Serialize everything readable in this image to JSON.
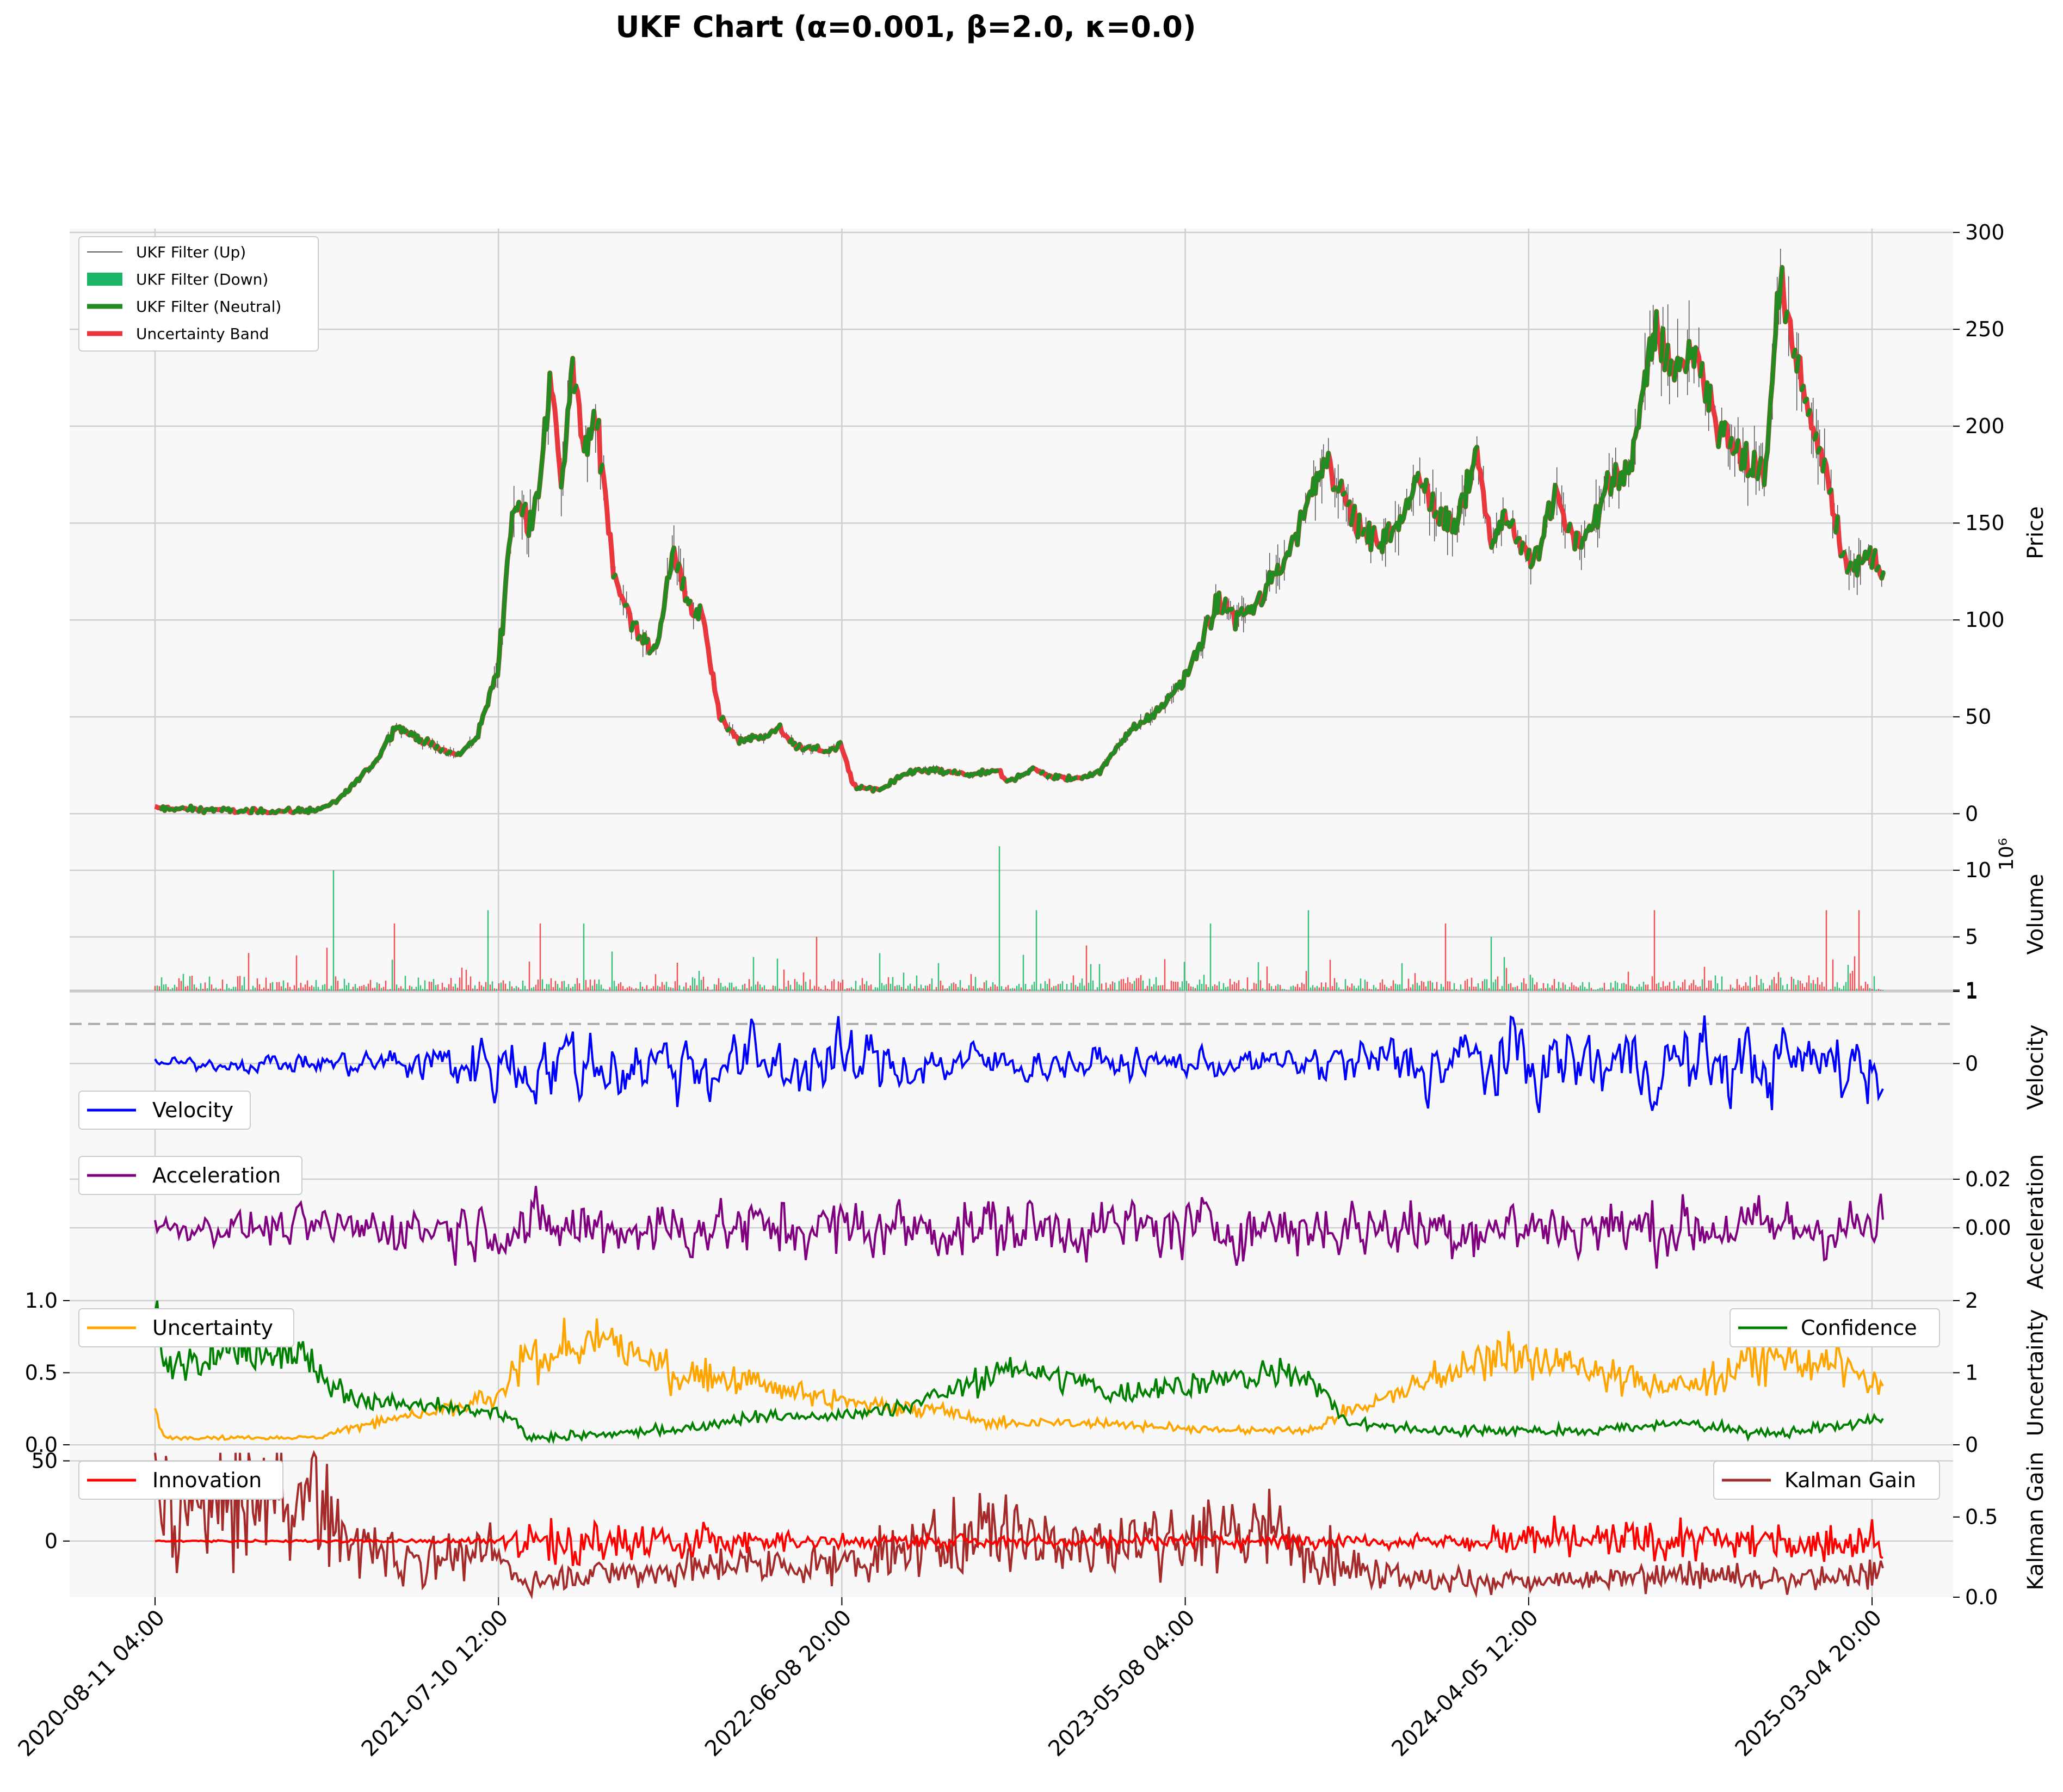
{
  "chart_data": {
    "title": "UKF Chart (α=0.001, β=2.0, κ=0.0)",
    "x_tick_labels": [
      "2020-08-11 04:00",
      "2021-07-10 12:00",
      "2022-06-08 20:00",
      "2023-05-08 04:00",
      "2024-04-05 12:00",
      "2025-03-04 20:00"
    ],
    "x_range": [
      "2020-08-11 04:00",
      "2025-03-17 00:00"
    ],
    "colors": {
      "panel_bg": "#f8f8f8",
      "grid": "#cfcfcf",
      "up_wick": "#555555",
      "down": "#19b465",
      "neutral": "#228b22",
      "band": "#e8383d",
      "velocity": "#0000ff",
      "acceleration": "#800080",
      "uncertainty": "#ffa500",
      "confidence": "#008000",
      "innovation": "#ff0000",
      "kalman_gain": "#a52a2a"
    },
    "panels": [
      {
        "id": "price",
        "type": "line",
        "ylabel": "Price",
        "ylim": [
          -12,
          302
        ],
        "yticks": [
          "0",
          "50",
          "100",
          "150",
          "200",
          "250",
          "300"
        ],
        "ytick_values": [
          0,
          50,
          100,
          150,
          200,
          250,
          300
        ],
        "legend": {
          "placement": "top-left",
          "entries": [
            "UKF Filter (Up)",
            "UKF Filter (Down)",
            "UKF Filter (Neutral)",
            "Uncertainty Band"
          ]
        },
        "series": [
          {
            "name": "Uncertainty Band",
            "x": [
              "2020-08-11",
              "2020-10-01",
              "2020-12-01",
              "2021-01-15",
              "2021-02-01",
              "2021-02-20",
              "2021-03-15",
              "2021-04-01",
              "2021-04-20",
              "2021-05-15",
              "2021-06-01",
              "2021-06-20",
              "2021-07-10",
              "2021-07-25",
              "2021-08-10",
              "2021-08-20",
              "2021-09-01",
              "2021-09-10",
              "2021-09-20",
              "2021-10-01",
              "2021-10-15",
              "2021-11-01",
              "2021-11-10",
              "2021-11-25",
              "2021-12-10",
              "2021-12-28",
              "2022-01-10",
              "2022-01-25",
              "2022-02-10",
              "2022-03-01",
              "2022-03-25",
              "2022-04-10",
              "2022-04-25",
              "2022-05-10",
              "2022-05-25",
              "2022-06-08",
              "2022-06-20",
              "2022-07-15",
              "2022-08-15",
              "2022-09-10",
              "2022-10-10",
              "2022-11-09",
              "2022-11-15",
              "2022-12-10",
              "2022-12-31",
              "2023-01-20",
              "2023-02-15",
              "2023-03-10",
              "2023-04-15",
              "2023-05-08",
              "2023-06-10",
              "2023-06-25",
              "2023-07-20",
              "2023-08-20",
              "2023-09-20",
              "2023-10-25",
              "2023-11-15",
              "2023-12-01",
              "2023-12-20",
              "2024-01-05",
              "2024-01-25",
              "2024-02-15",
              "2024-03-01",
              "2024-03-15",
              "2024-04-05",
              "2024-04-15",
              "2024-05-01",
              "2024-05-20",
              "2024-06-05",
              "2024-06-25",
              "2024-07-15",
              "2024-08-05",
              "2024-08-25",
              "2024-09-15",
              "2024-10-05",
              "2024-10-20",
              "2024-11-05",
              "2024-11-20",
              "2024-12-05",
              "2024-12-20",
              "2025-01-05",
              "2025-01-20",
              "2025-02-01",
              "2025-02-15",
              "2025-03-04",
              "2025-03-17"
            ],
            "values": [
              3,
              2,
              1,
              2,
              5,
              15,
              28,
              45,
              40,
              33,
              30,
              40,
              75,
              160,
              150,
              175,
              225,
              170,
              230,
              190,
              200,
              120,
              110,
              90,
              85,
              135,
              110,
              100,
              50,
              38,
              40,
              44,
              34,
              34,
              32,
              36,
              14,
              12,
              22,
              22,
              20,
              22,
              16,
              23,
              19,
              18,
              22,
              40,
              55,
              70,
              110,
              100,
              110,
              140,
              185,
              145,
              140,
              150,
              175,
              155,
              150,
              185,
              140,
              155,
              130,
              135,
              165,
              140,
              145,
              175,
              180,
              250,
              230,
              240,
              200,
              190,
              180,
              170,
              275,
              240,
              200,
              180,
              140,
              125,
              135,
              125
            ]
          }
        ]
      },
      {
        "id": "volume",
        "type": "bar",
        "ylabel": "Volume",
        "scale_label": "10⁶",
        "ylim": [
          0.9,
          12.5
        ],
        "yticks": [
          "1",
          "5",
          "10"
        ],
        "ytick_values": [
          1,
          5,
          10
        ],
        "spikes": {
          "x": [
            "2021-02-01",
            "2021-04-01",
            "2021-07-01",
            "2021-08-20",
            "2021-10-01",
            "2022-05-15",
            "2022-11-09",
            "2022-12-15",
            "2023-06-01",
            "2023-09-05",
            "2024-01-15",
            "2024-03-01",
            "2024-08-05",
            "2025-01-20",
            "2025-02-20"
          ],
          "values": [
            10,
            6,
            7,
            6,
            6,
            5,
            11.8,
            7,
            6,
            7,
            6,
            5,
            7,
            7,
            7
          ]
        }
      },
      {
        "id": "velocity",
        "type": "line",
        "ylabel": "Velocity",
        "ylim": [
          -1.1,
          1.0
        ],
        "yticks": [
          "0",
          "1"
        ],
        "ytick_values": [
          0,
          1
        ],
        "reference_line": 0.55,
        "legend": {
          "placement": "bottom-left",
          "entries": [
            "Velocity"
          ]
        }
      },
      {
        "id": "acceleration",
        "type": "line",
        "ylabel": "Acceleration",
        "ylim": [
          -0.03,
          0.035
        ],
        "yticks": [
          "0.00",
          "0.02"
        ],
        "ytick_values": [
          0,
          0.02
        ],
        "legend": {
          "placement": "top-left",
          "entries": [
            "Acceleration"
          ]
        }
      },
      {
        "id": "uncertainty",
        "type": "line",
        "ylabel": "Uncertainty",
        "ylim": [
          0,
          1.0
        ],
        "yticks": [
          "0.0",
          "0.5",
          "1.0"
        ],
        "ytick_values": [
          0,
          0.5,
          1.0
        ],
        "ylim_right": [
          0,
          2
        ],
        "yticks_right": [
          "0",
          "1",
          "2"
        ],
        "ytick_values_right": [
          0,
          1,
          2
        ],
        "legend_left": {
          "placement": "top-left",
          "entries": [
            "Uncertainty"
          ]
        },
        "legend_right": {
          "placement": "top-right",
          "entries": [
            "Confidence"
          ]
        },
        "series": [
          {
            "name": "Uncertainty",
            "x": [
              "2020-08-11",
              "2020-08-20",
              "2021-01-20",
              "2021-03-01",
              "2021-06-01",
              "2021-07-15",
              "2021-08-05",
              "2021-11-01",
              "2022-01-01",
              "2022-03-01",
              "2022-06-01",
              "2022-09-01",
              "2022-11-01",
              "2023-03-01",
              "2023-06-01",
              "2023-09-01",
              "2024-01-01",
              "2024-03-10",
              "2024-06-01",
              "2024-09-01",
              "2024-12-01",
              "2025-02-01",
              "2025-03-17"
            ],
            "values": [
              0.25,
              0.05,
              0.05,
              0.15,
              0.25,
              0.35,
              0.6,
              0.7,
              0.5,
              0.45,
              0.3,
              0.25,
              0.15,
              0.15,
              0.1,
              0.1,
              0.45,
              0.65,
              0.5,
              0.4,
              0.6,
              0.55,
              0.4
            ]
          },
          {
            "name": "Confidence",
            "x": [
              "2020-08-11",
              "2020-08-20",
              "2020-10-01",
              "2021-01-01",
              "2021-02-01",
              "2021-03-01",
              "2021-06-01",
              "2021-07-20",
              "2021-08-10",
              "2022-01-01",
              "2022-03-15",
              "2022-06-01",
              "2022-08-01",
              "2022-10-01",
              "2022-12-01",
              "2023-03-01",
              "2023-06-01",
              "2023-09-01",
              "2023-10-15",
              "2024-01-01",
              "2024-06-01",
              "2024-09-01",
              "2024-12-01",
              "2025-03-17"
            ],
            "values": [
              2.0,
              1.0,
              1.3,
              1.3,
              0.8,
              0.6,
              0.5,
              0.4,
              0.1,
              0.2,
              0.4,
              0.4,
              0.5,
              0.8,
              1.1,
              0.7,
              0.9,
              1.0,
              0.3,
              0.2,
              0.2,
              0.3,
              0.15,
              0.35
            ]
          }
        ]
      },
      {
        "id": "innovation",
        "type": "line",
        "ylabel": "Kalman Gain",
        "ylim": [
          -35,
          60
        ],
        "yticks": [
          "0",
          "50"
        ],
        "ytick_values": [
          0,
          50
        ],
        "ylim_right": [
          0,
          0.95
        ],
        "yticks_right": [
          "0.0",
          "0.5"
        ],
        "ytick_values_right": [
          0,
          0.5
        ],
        "legend_left": {
          "placement": "top-left",
          "entries": [
            "Innovation"
          ]
        },
        "legend_right": {
          "placement": "top-right",
          "entries": [
            "Kalman Gain"
          ]
        },
        "series": [
          {
            "name": "Kalman Gain",
            "x": [
              "2020-08-11",
              "2020-10-01",
              "2021-01-15",
              "2021-02-01",
              "2021-04-01",
              "2021-07-10",
              "2021-08-01",
              "2021-11-01",
              "2022-03-01",
              "2022-06-01",
              "2022-09-01",
              "2022-11-01",
              "2023-02-01",
              "2023-05-01",
              "2023-08-01",
              "2023-10-15",
              "2024-01-01",
              "2024-06-01",
              "2024-09-01",
              "2024-12-01",
              "2025-03-17"
            ],
            "values": [
              0.6,
              0.55,
              0.65,
              0.4,
              0.25,
              0.25,
              0.1,
              0.15,
              0.2,
              0.2,
              0.3,
              0.45,
              0.3,
              0.4,
              0.4,
              0.2,
              0.1,
              0.1,
              0.15,
              0.1,
              0.15
            ]
          }
        ]
      }
    ]
  }
}
